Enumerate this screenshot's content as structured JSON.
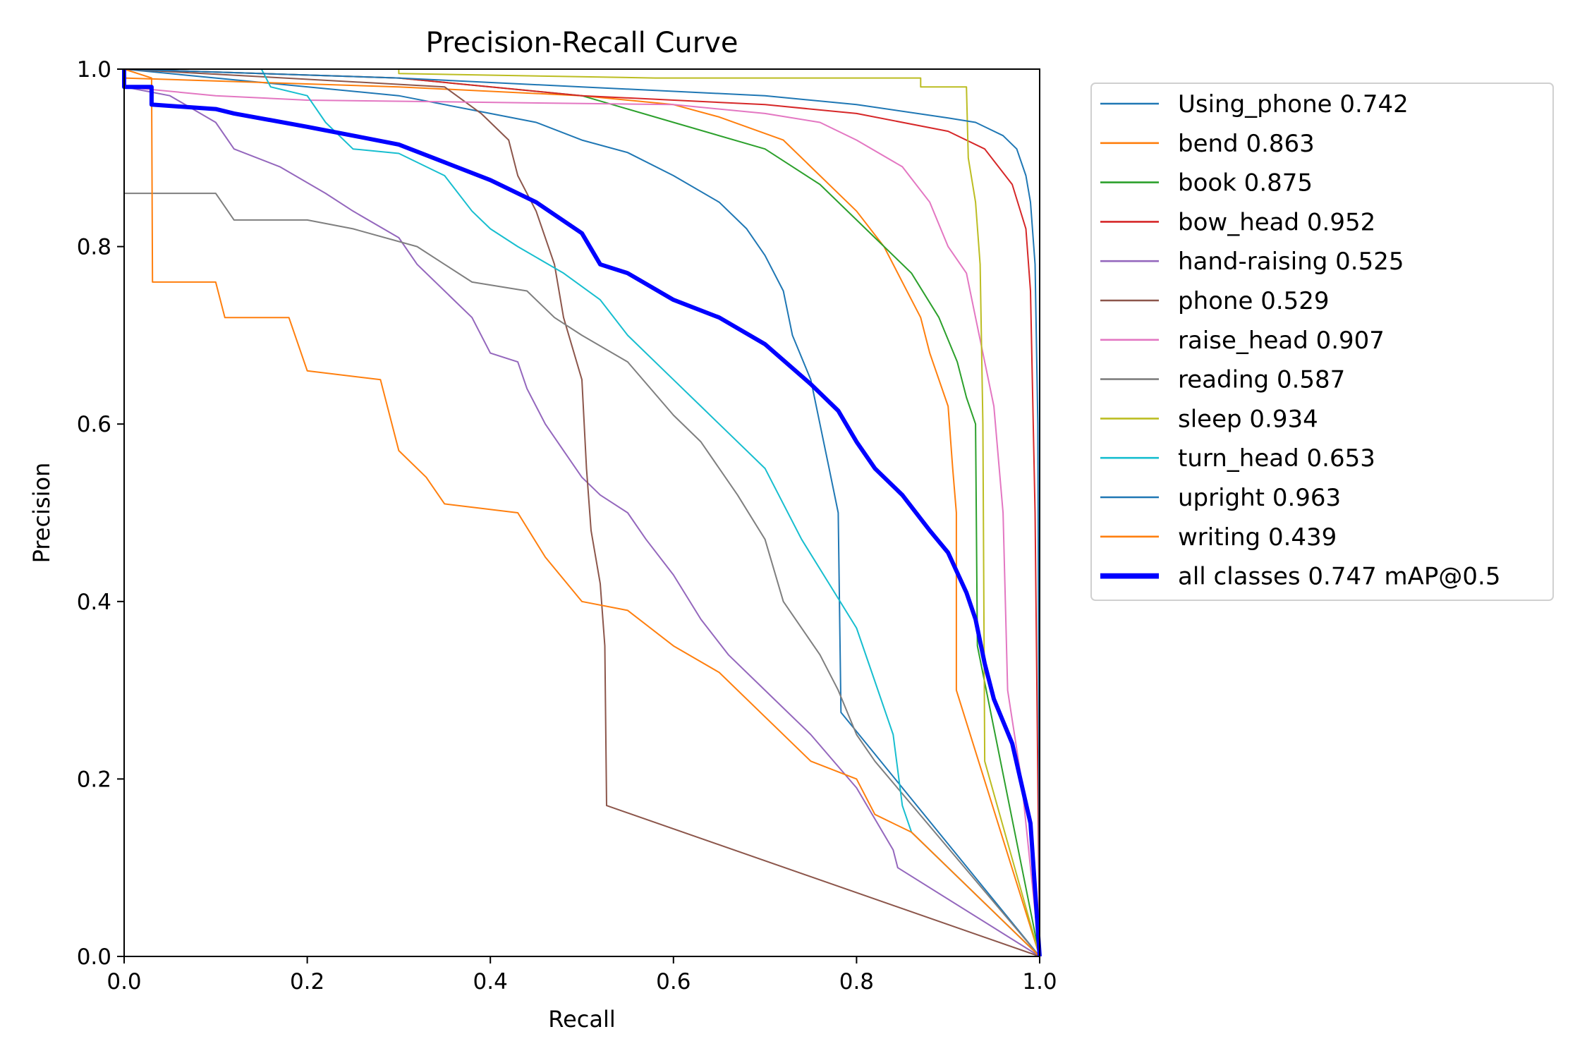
{
  "chart_data": {
    "type": "line",
    "title": "Precision-Recall Curve",
    "xlabel": "Recall",
    "ylabel": "Precision",
    "xlim": [
      0,
      1
    ],
    "ylim": [
      0,
      1
    ],
    "grid": false,
    "legend_placement": "outside-right-top",
    "xticks": [
      "0.0",
      "0.2",
      "0.4",
      "0.6",
      "0.8",
      "1.0"
    ],
    "yticks": [
      "0.0",
      "0.2",
      "0.4",
      "0.6",
      "0.8",
      "1.0"
    ],
    "series": [
      {
        "name": "Using_phone 0.742",
        "color": "#1f77b4",
        "width": 1,
        "points": [
          [
            0,
            1
          ],
          [
            0.1,
            0.99
          ],
          [
            0.3,
            0.97
          ],
          [
            0.4,
            0.95
          ],
          [
            0.45,
            0.94
          ],
          [
            0.5,
            0.92
          ],
          [
            0.55,
            0.906
          ],
          [
            0.6,
            0.88
          ],
          [
            0.65,
            0.85
          ],
          [
            0.68,
            0.82
          ],
          [
            0.7,
            0.79
          ],
          [
            0.72,
            0.75
          ],
          [
            0.73,
            0.7
          ],
          [
            0.75,
            0.65
          ],
          [
            0.76,
            0.6
          ],
          [
            0.77,
            0.55
          ],
          [
            0.78,
            0.5
          ],
          [
            0.783,
            0.275
          ],
          [
            1,
            0
          ]
        ]
      },
      {
        "name": "bend 0.863",
        "color": "#ff7f0e",
        "width": 1,
        "points": [
          [
            0,
            0.99
          ],
          [
            0.3,
            0.98
          ],
          [
            0.5,
            0.97
          ],
          [
            0.6,
            0.96
          ],
          [
            0.65,
            0.946
          ],
          [
            0.72,
            0.92
          ],
          [
            0.76,
            0.88
          ],
          [
            0.8,
            0.84
          ],
          [
            0.83,
            0.8
          ],
          [
            0.85,
            0.76
          ],
          [
            0.87,
            0.72
          ],
          [
            0.88,
            0.68
          ],
          [
            0.89,
            0.65
          ],
          [
            0.9,
            0.62
          ],
          [
            0.905,
            0.55
          ],
          [
            0.909,
            0.5
          ],
          [
            0.909,
            0.3
          ],
          [
            1,
            0
          ]
        ]
      },
      {
        "name": "book 0.875",
        "color": "#2ca02c",
        "width": 1,
        "points": [
          [
            0,
            1
          ],
          [
            0.3,
            0.99
          ],
          [
            0.5,
            0.97
          ],
          [
            0.6,
            0.94
          ],
          [
            0.7,
            0.91
          ],
          [
            0.76,
            0.87
          ],
          [
            0.82,
            0.81
          ],
          [
            0.86,
            0.77
          ],
          [
            0.89,
            0.72
          ],
          [
            0.91,
            0.67
          ],
          [
            0.92,
            0.63
          ],
          [
            0.93,
            0.6
          ],
          [
            0.932,
            0.35
          ],
          [
            1,
            0
          ]
        ]
      },
      {
        "name": "bow_head 0.952",
        "color": "#d62728",
        "width": 1,
        "points": [
          [
            0,
            1
          ],
          [
            0.3,
            0.99
          ],
          [
            0.5,
            0.97
          ],
          [
            0.7,
            0.96
          ],
          [
            0.8,
            0.95
          ],
          [
            0.9,
            0.93
          ],
          [
            0.94,
            0.91
          ],
          [
            0.97,
            0.87
          ],
          [
            0.985,
            0.82
          ],
          [
            0.99,
            0.75
          ],
          [
            0.995,
            0.5
          ],
          [
            1,
            0
          ]
        ]
      },
      {
        "name": "hand-raising 0.525",
        "color": "#9467bd",
        "width": 1,
        "points": [
          [
            0,
            0.98
          ],
          [
            0.05,
            0.97
          ],
          [
            0.1,
            0.94
          ],
          [
            0.12,
            0.91
          ],
          [
            0.17,
            0.89
          ],
          [
            0.22,
            0.86
          ],
          [
            0.25,
            0.84
          ],
          [
            0.3,
            0.81
          ],
          [
            0.32,
            0.78
          ],
          [
            0.36,
            0.74
          ],
          [
            0.38,
            0.72
          ],
          [
            0.4,
            0.68
          ],
          [
            0.43,
            0.67
          ],
          [
            0.44,
            0.64
          ],
          [
            0.46,
            0.6
          ],
          [
            0.48,
            0.57
          ],
          [
            0.5,
            0.54
          ],
          [
            0.52,
            0.52
          ],
          [
            0.55,
            0.5
          ],
          [
            0.57,
            0.47
          ],
          [
            0.6,
            0.43
          ],
          [
            0.63,
            0.38
          ],
          [
            0.66,
            0.34
          ],
          [
            0.7,
            0.3
          ],
          [
            0.75,
            0.25
          ],
          [
            0.8,
            0.19
          ],
          [
            0.84,
            0.12
          ],
          [
            0.845,
            0.1
          ],
          [
            1,
            0
          ]
        ]
      },
      {
        "name": "phone 0.529",
        "color": "#8c564b",
        "width": 1,
        "points": [
          [
            0,
            1
          ],
          [
            0.35,
            0.98
          ],
          [
            0.39,
            0.95
          ],
          [
            0.42,
            0.92
          ],
          [
            0.43,
            0.88
          ],
          [
            0.45,
            0.84
          ],
          [
            0.47,
            0.78
          ],
          [
            0.48,
            0.72
          ],
          [
            0.5,
            0.65
          ],
          [
            0.505,
            0.55
          ],
          [
            0.51,
            0.48
          ],
          [
            0.52,
            0.42
          ],
          [
            0.525,
            0.35
          ],
          [
            0.527,
            0.17
          ],
          [
            1,
            0
          ]
        ]
      },
      {
        "name": "raise_head 0.907",
        "color": "#e377c2",
        "width": 1,
        "points": [
          [
            0,
            0.98
          ],
          [
            0.1,
            0.97
          ],
          [
            0.2,
            0.965
          ],
          [
            0.6,
            0.96
          ],
          [
            0.7,
            0.95
          ],
          [
            0.76,
            0.94
          ],
          [
            0.8,
            0.92
          ],
          [
            0.85,
            0.89
          ],
          [
            0.88,
            0.85
          ],
          [
            0.9,
            0.8
          ],
          [
            0.92,
            0.77
          ],
          [
            0.93,
            0.72
          ],
          [
            0.95,
            0.62
          ],
          [
            0.96,
            0.5
          ],
          [
            0.965,
            0.3
          ],
          [
            0.98,
            0.2
          ],
          [
            1,
            0
          ]
        ]
      },
      {
        "name": "reading 0.587",
        "color": "#7f7f7f",
        "width": 1,
        "points": [
          [
            0,
            0.86
          ],
          [
            0.1,
            0.86
          ],
          [
            0.12,
            0.83
          ],
          [
            0.2,
            0.83
          ],
          [
            0.25,
            0.82
          ],
          [
            0.32,
            0.8
          ],
          [
            0.35,
            0.78
          ],
          [
            0.38,
            0.76
          ],
          [
            0.44,
            0.75
          ],
          [
            0.47,
            0.72
          ],
          [
            0.5,
            0.7
          ],
          [
            0.55,
            0.67
          ],
          [
            0.6,
            0.61
          ],
          [
            0.63,
            0.58
          ],
          [
            0.67,
            0.52
          ],
          [
            0.7,
            0.47
          ],
          [
            0.72,
            0.4
          ],
          [
            0.76,
            0.34
          ],
          [
            0.78,
            0.3
          ],
          [
            0.8,
            0.25
          ],
          [
            0.82,
            0.22
          ],
          [
            1,
            0
          ]
        ]
      },
      {
        "name": "sleep 0.934",
        "color": "#bcbd22",
        "width": 1,
        "points": [
          [
            0,
            1
          ],
          [
            0.3,
            1
          ],
          [
            0.3,
            0.995
          ],
          [
            0.58,
            0.99
          ],
          [
            0.87,
            0.99
          ],
          [
            0.87,
            0.98
          ],
          [
            0.92,
            0.98
          ],
          [
            0.922,
            0.9
          ],
          [
            0.93,
            0.85
          ],
          [
            0.935,
            0.78
          ],
          [
            0.938,
            0.6
          ],
          [
            0.94,
            0.22
          ],
          [
            1,
            0
          ]
        ]
      },
      {
        "name": "turn_head 0.653",
        "color": "#17becf",
        "width": 1,
        "points": [
          [
            0,
            1
          ],
          [
            0.15,
            1
          ],
          [
            0.16,
            0.98
          ],
          [
            0.2,
            0.97
          ],
          [
            0.22,
            0.94
          ],
          [
            0.25,
            0.91
          ],
          [
            0.3,
            0.905
          ],
          [
            0.35,
            0.88
          ],
          [
            0.38,
            0.84
          ],
          [
            0.4,
            0.82
          ],
          [
            0.43,
            0.8
          ],
          [
            0.48,
            0.77
          ],
          [
            0.52,
            0.74
          ],
          [
            0.55,
            0.7
          ],
          [
            0.6,
            0.65
          ],
          [
            0.63,
            0.62
          ],
          [
            0.66,
            0.59
          ],
          [
            0.7,
            0.55
          ],
          [
            0.74,
            0.47
          ],
          [
            0.77,
            0.42
          ],
          [
            0.8,
            0.37
          ],
          [
            0.82,
            0.31
          ],
          [
            0.84,
            0.25
          ],
          [
            0.85,
            0.17
          ],
          [
            0.86,
            0.14
          ],
          [
            1,
            0
          ]
        ]
      },
      {
        "name": "upright 0.963",
        "color": "#1f77b4",
        "width": 1,
        "points": [
          [
            0,
            1
          ],
          [
            0.3,
            0.99
          ],
          [
            0.5,
            0.98
          ],
          [
            0.7,
            0.97
          ],
          [
            0.8,
            0.96
          ],
          [
            0.9,
            0.945
          ],
          [
            0.93,
            0.94
          ],
          [
            0.96,
            0.925
          ],
          [
            0.975,
            0.91
          ],
          [
            0.985,
            0.88
          ],
          [
            0.99,
            0.85
          ],
          [
            0.995,
            0.78
          ],
          [
            0.998,
            0.6
          ],
          [
            1,
            0
          ]
        ]
      },
      {
        "name": "writing 0.439",
        "color": "#ff7f0e",
        "width": 1,
        "points": [
          [
            0,
            1
          ],
          [
            0.03,
            0.99
          ],
          [
            0.031,
            0.76
          ],
          [
            0.1,
            0.76
          ],
          [
            0.11,
            0.72
          ],
          [
            0.18,
            0.72
          ],
          [
            0.2,
            0.66
          ],
          [
            0.28,
            0.65
          ],
          [
            0.3,
            0.57
          ],
          [
            0.33,
            0.54
          ],
          [
            0.35,
            0.51
          ],
          [
            0.43,
            0.5
          ],
          [
            0.46,
            0.45
          ],
          [
            0.5,
            0.4
          ],
          [
            0.55,
            0.39
          ],
          [
            0.6,
            0.35
          ],
          [
            0.65,
            0.32
          ],
          [
            0.7,
            0.27
          ],
          [
            0.75,
            0.22
          ],
          [
            0.8,
            0.2
          ],
          [
            0.82,
            0.16
          ],
          [
            0.86,
            0.14
          ],
          [
            0.9,
            0.1
          ],
          [
            1,
            0
          ]
        ]
      },
      {
        "name": "all classes 0.747 mAP@0.5",
        "color": "#0000ff",
        "width": 3,
        "points": [
          [
            0,
            1
          ],
          [
            0,
            0.98
          ],
          [
            0.03,
            0.98
          ],
          [
            0.03,
            0.96
          ],
          [
            0.1,
            0.955
          ],
          [
            0.12,
            0.95
          ],
          [
            0.2,
            0.935
          ],
          [
            0.25,
            0.925
          ],
          [
            0.3,
            0.915
          ],
          [
            0.35,
            0.895
          ],
          [
            0.4,
            0.875
          ],
          [
            0.45,
            0.85
          ],
          [
            0.5,
            0.815
          ],
          [
            0.52,
            0.78
          ],
          [
            0.55,
            0.77
          ],
          [
            0.6,
            0.74
          ],
          [
            0.65,
            0.72
          ],
          [
            0.7,
            0.69
          ],
          [
            0.75,
            0.645
          ],
          [
            0.78,
            0.615
          ],
          [
            0.8,
            0.58
          ],
          [
            0.82,
            0.55
          ],
          [
            0.85,
            0.52
          ],
          [
            0.88,
            0.48
          ],
          [
            0.9,
            0.455
          ],
          [
            0.92,
            0.41
          ],
          [
            0.93,
            0.38
          ],
          [
            0.94,
            0.33
          ],
          [
            0.95,
            0.29
          ],
          [
            0.97,
            0.24
          ],
          [
            0.99,
            0.15
          ],
          [
            1,
            0
          ]
        ]
      }
    ]
  }
}
